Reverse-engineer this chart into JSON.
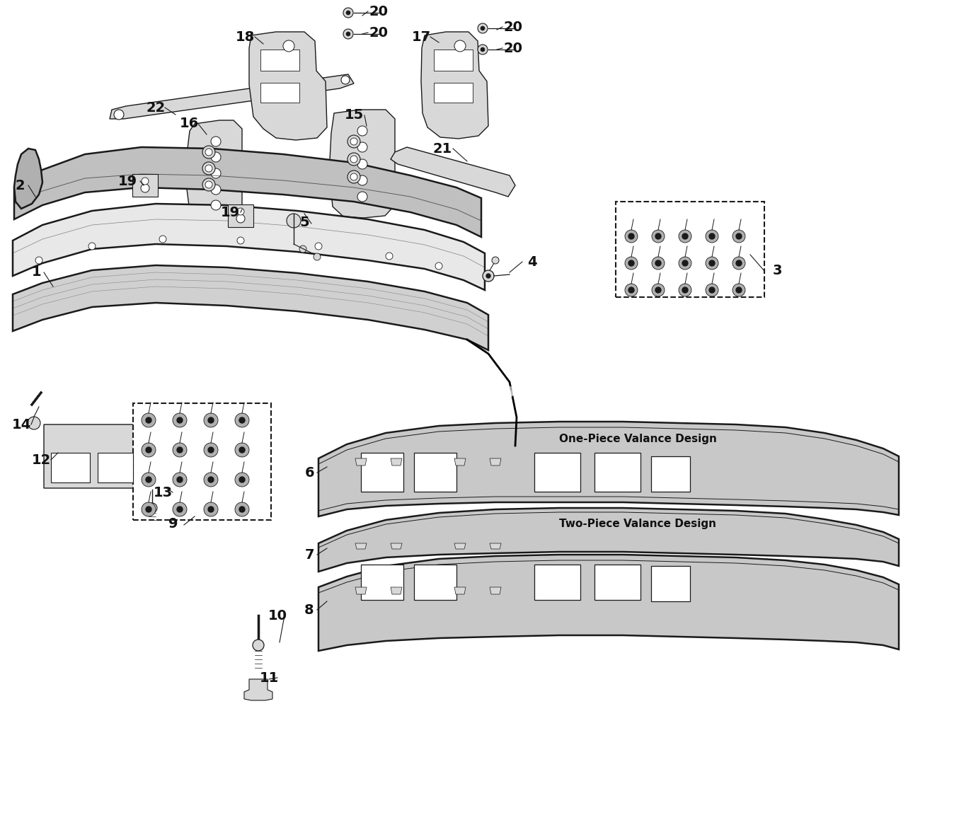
{
  "bg_color": "#ffffff",
  "lc": "#1a1a1a",
  "fc": "#cccccc",
  "fl": "#d8d8d8",
  "fd": "#aaaaaa",
  "lw_main": 1.8,
  "lw_thin": 1.0
}
